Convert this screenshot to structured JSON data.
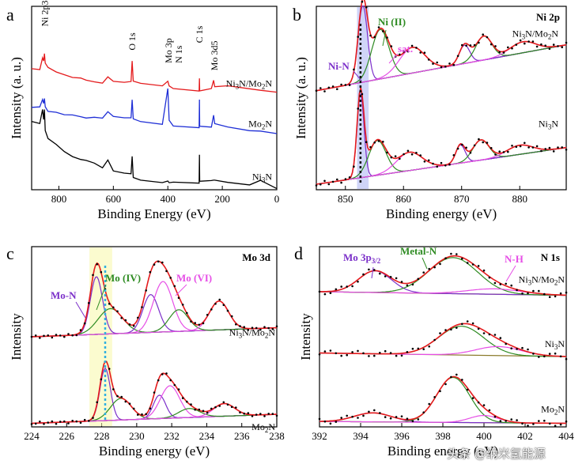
{
  "chart_data": [
    {
      "panel": "a",
      "type": "line",
      "xlabel": "Binding Energy (eV)",
      "ylabel": "Intensity (a. u.)",
      "xlim": [
        900,
        0
      ],
      "ylim": [
        0,
        10
      ],
      "xticks": [
        800,
        600,
        400,
        200,
        0
      ],
      "annotations": [
        {
          "text": "Ni 2p3",
          "x": 852,
          "y": 8.9
        },
        {
          "text": "O 1s",
          "x": 531,
          "y": 7.6
        },
        {
          "text": "Mo 3p",
          "x": 398,
          "y": 6.9
        },
        {
          "text": "N 1s",
          "x": 360,
          "y": 6.9
        },
        {
          "text": "C 1s",
          "x": 284,
          "y": 8.0
        },
        {
          "text": "Mo 3d5",
          "x": 230,
          "y": 6.5
        }
      ],
      "series": [
        {
          "label": "Ni",
          "sub": "3",
          "mid": "N/Mo",
          "sub2": "2",
          "end": "N",
          "color": "#e41a1c",
          "offset": 6.0,
          "x": [
            900,
            870,
            860,
            856,
            853,
            850,
            840,
            810,
            780,
            750,
            720,
            700,
            670,
            640,
            620,
            600,
            560,
            535,
            531,
            527,
            500,
            420,
            400,
            395,
            380,
            285,
            284,
            283,
            240,
            232,
            228,
            180,
            100,
            60,
            0
          ],
          "y": [
            6.6,
            6.5,
            7.1,
            6.9,
            7.3,
            6.8,
            6.6,
            6.4,
            6.3,
            6.2,
            6.2,
            6.1,
            6.0,
            5.9,
            6.2,
            5.9,
            5.8,
            5.8,
            6.9,
            5.8,
            5.7,
            5.6,
            5.9,
            5.7,
            5.6,
            5.5,
            6.2,
            5.5,
            5.6,
            6.0,
            5.6,
            5.6,
            5.4,
            5.3,
            5.2
          ]
        },
        {
          "label": "Mo",
          "sub": "2",
          "end": "N",
          "color": "#1f2fd6",
          "offset": 3.0,
          "x": [
            900,
            870,
            860,
            856,
            853,
            850,
            840,
            810,
            780,
            750,
            720,
            700,
            670,
            640,
            620,
            600,
            560,
            535,
            531,
            527,
            500,
            420,
            400,
            395,
            380,
            285,
            284,
            283,
            240,
            232,
            228,
            180,
            100,
            60,
            0
          ],
          "y": [
            4.4,
            4.4,
            4.8,
            4.6,
            4.9,
            4.5,
            4.3,
            4.3,
            4.2,
            4.2,
            4.1,
            4.0,
            4.0,
            3.9,
            4.2,
            3.9,
            3.8,
            3.8,
            4.8,
            3.8,
            3.7,
            3.6,
            5.6,
            3.9,
            3.6,
            3.5,
            5.0,
            3.5,
            3.4,
            4.0,
            3.5,
            3.3,
            3.1,
            3.1,
            3.0
          ]
        },
        {
          "label": "Ni",
          "sub": "3",
          "end": "N",
          "color": "#000000",
          "offset": 0.0,
          "x": [
            900,
            870,
            860,
            856,
            853,
            850,
            840,
            810,
            780,
            750,
            720,
            700,
            670,
            640,
            620,
            600,
            560,
            535,
            531,
            527,
            500,
            420,
            400,
            395,
            380,
            285,
            284,
            283,
            240,
            232,
            228,
            180,
            100,
            60,
            0
          ],
          "y": [
            3.6,
            3.5,
            4.3,
            3.8,
            4.4,
            3.3,
            2.9,
            2.6,
            2.2,
            1.9,
            1.7,
            1.6,
            1.4,
            1.1,
            1.5,
            0.9,
            0.8,
            0.8,
            1.8,
            0.7,
            0.6,
            0.5,
            0.6,
            0.5,
            0.5,
            0.4,
            1.9,
            0.4,
            0.4,
            0.4,
            0.4,
            0.3,
            0.2,
            0.5,
            0.1
          ]
        }
      ]
    },
    {
      "panel": "b",
      "type": "line",
      "corner_label": "Ni 2p",
      "xlabel": "Binding energy (eV)",
      "ylabel": "Intensity (a. u.)",
      "xlim": [
        845,
        888
      ],
      "ylim": [
        0,
        10
      ],
      "xticks": [
        850,
        860,
        870,
        880
      ],
      "highlight_band": [
        852.0,
        854.0
      ],
      "dashed_line_x": 852.6,
      "peak_labels": [
        {
          "text": "Ni (II)",
          "color": "#2e8b22"
        },
        {
          "text": "sat.",
          "color": "#e64ee6"
        },
        {
          "text": "Ni-N",
          "color": "#7b2fc9"
        }
      ],
      "samples": [
        {
          "label": "Ni",
          "sub": "3",
          "mid": "N/Mo",
          "sub2": "2",
          "end": "N",
          "baseline_left": 5.4,
          "baseline_right": 7.9,
          "peaks": [
            {
              "center": 853.0,
              "height": 4.2,
              "width": 0.8,
              "color": "#7b2fc9"
            },
            {
              "center": 856.0,
              "height": 2.7,
              "width": 1.5,
              "color": "#2e8b22"
            },
            {
              "center": 861.5,
              "height": 1.4,
              "width": 2.2,
              "color": "#e64ee6"
            },
            {
              "center": 870.5,
              "height": 1.0,
              "width": 0.9,
              "color": "#7b2fc9"
            },
            {
              "center": 873.8,
              "height": 1.3,
              "width": 1.4,
              "color": "#2e8b22"
            },
            {
              "center": 880.5,
              "height": 0.6,
              "width": 2.2,
              "color": "#e64ee6"
            }
          ]
        },
        {
          "label": "Ni",
          "sub": "3",
          "end": "N",
          "baseline_left": 0.3,
          "baseline_right": 2.3,
          "peaks": [
            {
              "center": 852.6,
              "height": 4.6,
              "width": 0.6,
              "color": "#7b2fc9"
            },
            {
              "center": 855.5,
              "height": 1.9,
              "width": 1.5,
              "color": "#2e8b22"
            },
            {
              "center": 861.0,
              "height": 1.0,
              "width": 2.2,
              "color": "#e64ee6"
            },
            {
              "center": 869.8,
              "height": 1.0,
              "width": 0.8,
              "color": "#7b2fc9"
            },
            {
              "center": 873.3,
              "height": 1.1,
              "width": 1.4,
              "color": "#2e8b22"
            },
            {
              "center": 880.0,
              "height": 0.5,
              "width": 2.2,
              "color": "#e64ee6"
            }
          ]
        }
      ]
    },
    {
      "panel": "c",
      "type": "line",
      "corner_label": "Mo 3d",
      "xlabel": "Binding energy (eV)",
      "ylabel": "Intensity",
      "xlim": [
        224,
        238
      ],
      "ylim": [
        0,
        10
      ],
      "xticks": [
        224,
        226,
        228,
        230,
        232,
        234,
        236,
        238
      ],
      "highlight_band": [
        227.3,
        228.6
      ],
      "dashed_line_x": 228.2,
      "peak_labels": [
        {
          "text": "Mo-N",
          "color": "#7b2fc9"
        },
        {
          "text": "Mo (IV)",
          "color": "#2e8b22"
        },
        {
          "text": "Mo (VI)",
          "color": "#e64ee6"
        }
      ],
      "samples": [
        {
          "label": "Ni",
          "sub": "3",
          "mid": "N/Mo",
          "sub2": "2",
          "end": "N",
          "baseline_left": 5.0,
          "baseline_right": 5.5,
          "peaks": [
            {
              "center": 227.7,
              "height": 3.2,
              "width": 0.35,
              "color": "#7b2fc9"
            },
            {
              "center": 228.5,
              "height": 1.4,
              "width": 0.7,
              "color": "#2e8b22"
            },
            {
              "center": 230.8,
              "height": 2.1,
              "width": 0.45,
              "color": "#7b2fc9"
            },
            {
              "center": 231.5,
              "height": 2.8,
              "width": 0.55,
              "color": "#e64ee6"
            },
            {
              "center": 232.4,
              "height": 1.2,
              "width": 0.55,
              "color": "#2e8b22"
            },
            {
              "center": 234.7,
              "height": 1.6,
              "width": 0.55,
              "color": "#e64ee6"
            }
          ]
        },
        {
          "label": "Mo",
          "sub": "2",
          "end": "N",
          "baseline_left": 0.2,
          "baseline_right": 0.7,
          "peaks": [
            {
              "center": 228.2,
              "height": 2.9,
              "width": 0.3,
              "color": "#7b2fc9"
            },
            {
              "center": 229.1,
              "height": 1.2,
              "width": 0.6,
              "color": "#2e8b22"
            },
            {
              "center": 231.3,
              "height": 1.3,
              "width": 0.35,
              "color": "#7b2fc9"
            },
            {
              "center": 231.9,
              "height": 1.8,
              "width": 0.55,
              "color": "#e64ee6"
            },
            {
              "center": 233.0,
              "height": 0.5,
              "width": 0.6,
              "color": "#2e8b22"
            },
            {
              "center": 235.0,
              "height": 0.7,
              "width": 0.6,
              "color": "#e64ee6"
            }
          ]
        }
      ]
    },
    {
      "panel": "d",
      "type": "line",
      "corner_label": "N 1s",
      "xlabel": "Binding energy (eV)",
      "ylabel": "Intensity",
      "xlim": [
        392,
        404
      ],
      "ylim": [
        0,
        10
      ],
      "xticks": [
        392,
        394,
        396,
        398,
        400,
        402,
        404
      ],
      "peak_labels": [
        {
          "text": "Mo 3p",
          "sub": "3/2",
          "color": "#7b2fc9"
        },
        {
          "text": "Metal-N",
          "color": "#2e8b22"
        },
        {
          "text": "N-H",
          "color": "#e64ee6"
        }
      ],
      "samples": [
        {
          "label": "Ni",
          "sub": "3",
          "mid": "N/Mo",
          "sub2": "2",
          "end": "N",
          "baseline_left": 7.5,
          "baseline_right": 7.3,
          "peaks": [
            {
              "center": 394.7,
              "height": 1.2,
              "width": 0.8,
              "color": "#7b2fc9"
            },
            {
              "center": 398.5,
              "height": 2.0,
              "width": 1.2,
              "color": "#2e8b22"
            },
            {
              "center": 400.5,
              "height": 0.3,
              "width": 1.3,
              "color": "#e64ee6"
            }
          ]
        },
        {
          "label": "Ni",
          "sub": "3",
          "end": "N",
          "baseline_left": 4.1,
          "baseline_right": 3.9,
          "peaks": [
            {
              "center": 398.9,
              "height": 1.6,
              "width": 1.1,
              "color": "#2e8b22"
            },
            {
              "center": 400.7,
              "height": 0.5,
              "width": 1.1,
              "color": "#e64ee6"
            }
          ]
        },
        {
          "label": "Mo",
          "sub": "2",
          "end": "N",
          "baseline_left": 0.3,
          "baseline_right": 0.2,
          "peaks": [
            {
              "center": 394.6,
              "height": 0.5,
              "width": 0.9,
              "color": "#7b2fc9"
            },
            {
              "center": 398.5,
              "height": 2.5,
              "width": 0.8,
              "color": "#2e8b22"
            },
            {
              "center": 400.0,
              "height": 0.4,
              "width": 0.7,
              "color": "#e64ee6"
            }
          ]
        }
      ]
    }
  ],
  "panel_letters": [
    "a",
    "b",
    "c",
    "d"
  ],
  "watermark": "头条 @纳米氢能源"
}
